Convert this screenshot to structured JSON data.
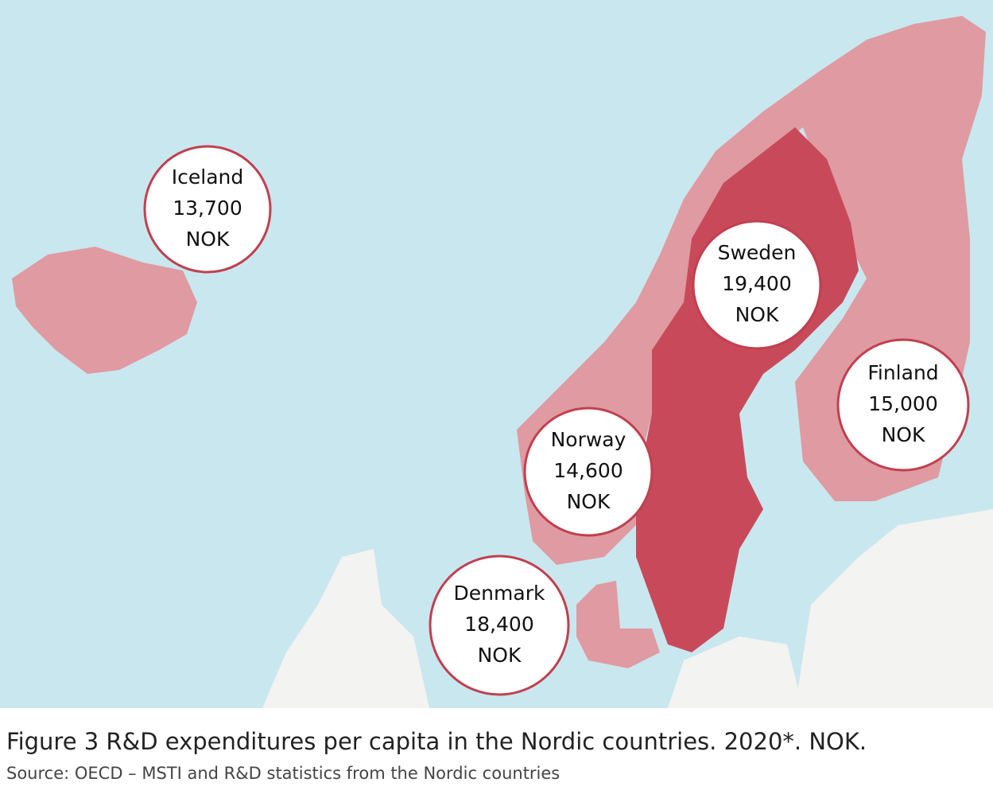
{
  "map": {
    "regions": [
      {
        "name": "Iceland",
        "value": "13,700",
        "unit": "NOK"
      },
      {
        "name": "Sweden",
        "value": "19,400",
        "unit": "NOK"
      },
      {
        "name": "Finland",
        "value": "15,000",
        "unit": "NOK"
      },
      {
        "name": "Norway",
        "value": "14,600",
        "unit": "NOK"
      },
      {
        "name": "Denmark",
        "value": "18,400",
        "unit": "NOK"
      }
    ]
  },
  "caption": {
    "title": "Figure 3 R&D expenditures per capita in the Nordic countries. 2020*. NOK.",
    "source": "Source: OECD – MSTI and R&D statistics from the Nordic countries"
  }
}
